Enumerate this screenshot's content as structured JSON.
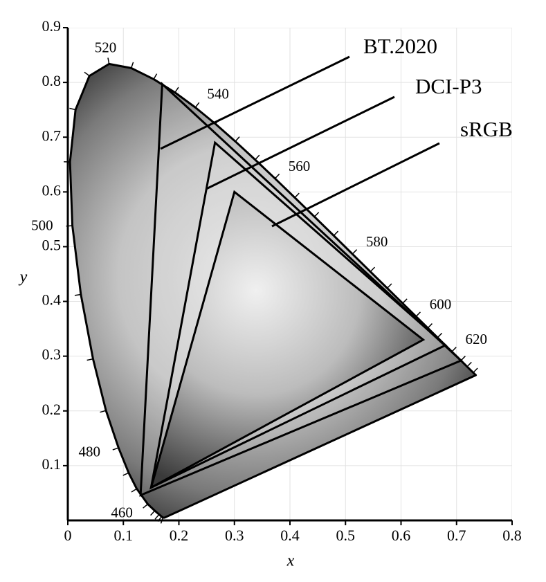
{
  "chart_data": {
    "type": "chromaticity",
    "xlabel": "x",
    "ylabel": "y",
    "xlim": [
      0,
      0.8
    ],
    "ylim": [
      0,
      0.9
    ],
    "xticks": [
      0,
      0.1,
      0.2,
      0.3,
      0.4,
      0.5,
      0.6,
      0.7,
      0.8
    ],
    "yticks": [
      0.1,
      0.2,
      0.3,
      0.4,
      0.5,
      0.6,
      0.7,
      0.8,
      0.9
    ],
    "grid": true,
    "locus": [
      {
        "wavelength": 380,
        "x": 0.1741,
        "y": 0.005,
        "labeled": false
      },
      {
        "wavelength": 420,
        "x": 0.1714,
        "y": 0.0051,
        "labeled": false
      },
      {
        "wavelength": 430,
        "x": 0.1689,
        "y": 0.0069,
        "labeled": false
      },
      {
        "wavelength": 440,
        "x": 0.1644,
        "y": 0.0109,
        "labeled": false
      },
      {
        "wavelength": 450,
        "x": 0.1566,
        "y": 0.0177,
        "labeled": false
      },
      {
        "wavelength": 460,
        "x": 0.144,
        "y": 0.0297,
        "labeled": true
      },
      {
        "wavelength": 470,
        "x": 0.1241,
        "y": 0.0578,
        "labeled": false
      },
      {
        "wavelength": 475,
        "x": 0.1096,
        "y": 0.0868,
        "labeled": false
      },
      {
        "wavelength": 480,
        "x": 0.0913,
        "y": 0.1327,
        "labeled": true
      },
      {
        "wavelength": 485,
        "x": 0.0687,
        "y": 0.2007,
        "labeled": false
      },
      {
        "wavelength": 490,
        "x": 0.0454,
        "y": 0.295,
        "labeled": false
      },
      {
        "wavelength": 495,
        "x": 0.0235,
        "y": 0.4127,
        "labeled": false
      },
      {
        "wavelength": 500,
        "x": 0.0082,
        "y": 0.5384,
        "labeled": true
      },
      {
        "wavelength": 505,
        "x": 0.0039,
        "y": 0.6548,
        "labeled": false
      },
      {
        "wavelength": 510,
        "x": 0.0139,
        "y": 0.7502,
        "labeled": false
      },
      {
        "wavelength": 515,
        "x": 0.0389,
        "y": 0.812,
        "labeled": false
      },
      {
        "wavelength": 520,
        "x": 0.0743,
        "y": 0.8338,
        "labeled": true
      },
      {
        "wavelength": 525,
        "x": 0.1142,
        "y": 0.8262,
        "labeled": false
      },
      {
        "wavelength": 530,
        "x": 0.1547,
        "y": 0.8059,
        "labeled": false
      },
      {
        "wavelength": 535,
        "x": 0.1929,
        "y": 0.7816,
        "labeled": false
      },
      {
        "wavelength": 540,
        "x": 0.2296,
        "y": 0.7543,
        "labeled": true
      },
      {
        "wavelength": 545,
        "x": 0.2658,
        "y": 0.7243,
        "labeled": false
      },
      {
        "wavelength": 550,
        "x": 0.3016,
        "y": 0.6923,
        "labeled": false
      },
      {
        "wavelength": 555,
        "x": 0.3373,
        "y": 0.6589,
        "labeled": false
      },
      {
        "wavelength": 560,
        "x": 0.3731,
        "y": 0.6245,
        "labeled": true
      },
      {
        "wavelength": 565,
        "x": 0.4087,
        "y": 0.5896,
        "labeled": false
      },
      {
        "wavelength": 570,
        "x": 0.4441,
        "y": 0.5547,
        "labeled": false
      },
      {
        "wavelength": 575,
        "x": 0.4788,
        "y": 0.5202,
        "labeled": false
      },
      {
        "wavelength": 580,
        "x": 0.5125,
        "y": 0.4866,
        "labeled": true
      },
      {
        "wavelength": 585,
        "x": 0.5448,
        "y": 0.4544,
        "labeled": false
      },
      {
        "wavelength": 590,
        "x": 0.5752,
        "y": 0.4242,
        "labeled": false
      },
      {
        "wavelength": 595,
        "x": 0.6029,
        "y": 0.3965,
        "labeled": false
      },
      {
        "wavelength": 600,
        "x": 0.627,
        "y": 0.3725,
        "labeled": true
      },
      {
        "wavelength": 605,
        "x": 0.6482,
        "y": 0.3514,
        "labeled": false
      },
      {
        "wavelength": 610,
        "x": 0.6658,
        "y": 0.334,
        "labeled": false
      },
      {
        "wavelength": 620,
        "x": 0.6915,
        "y": 0.3083,
        "labeled": true
      },
      {
        "wavelength": 630,
        "x": 0.7079,
        "y": 0.292,
        "labeled": false
      },
      {
        "wavelength": 640,
        "x": 0.719,
        "y": 0.2809,
        "labeled": false
      },
      {
        "wavelength": 660,
        "x": 0.73,
        "y": 0.27,
        "labeled": false
      },
      {
        "wavelength": 700,
        "x": 0.7347,
        "y": 0.2653,
        "labeled": false
      }
    ],
    "gamuts": [
      {
        "name": "BT.2020",
        "x": [
          0.708,
          0.17,
          0.131
        ],
        "y": [
          0.292,
          0.797,
          0.046
        ]
      },
      {
        "name": "DCI-P3",
        "x": [
          0.68,
          0.265,
          0.15
        ],
        "y": [
          0.32,
          0.69,
          0.06
        ]
      },
      {
        "name": "sRGB",
        "x": [
          0.64,
          0.3,
          0.15
        ],
        "y": [
          0.33,
          0.6,
          0.06
        ]
      }
    ]
  }
}
